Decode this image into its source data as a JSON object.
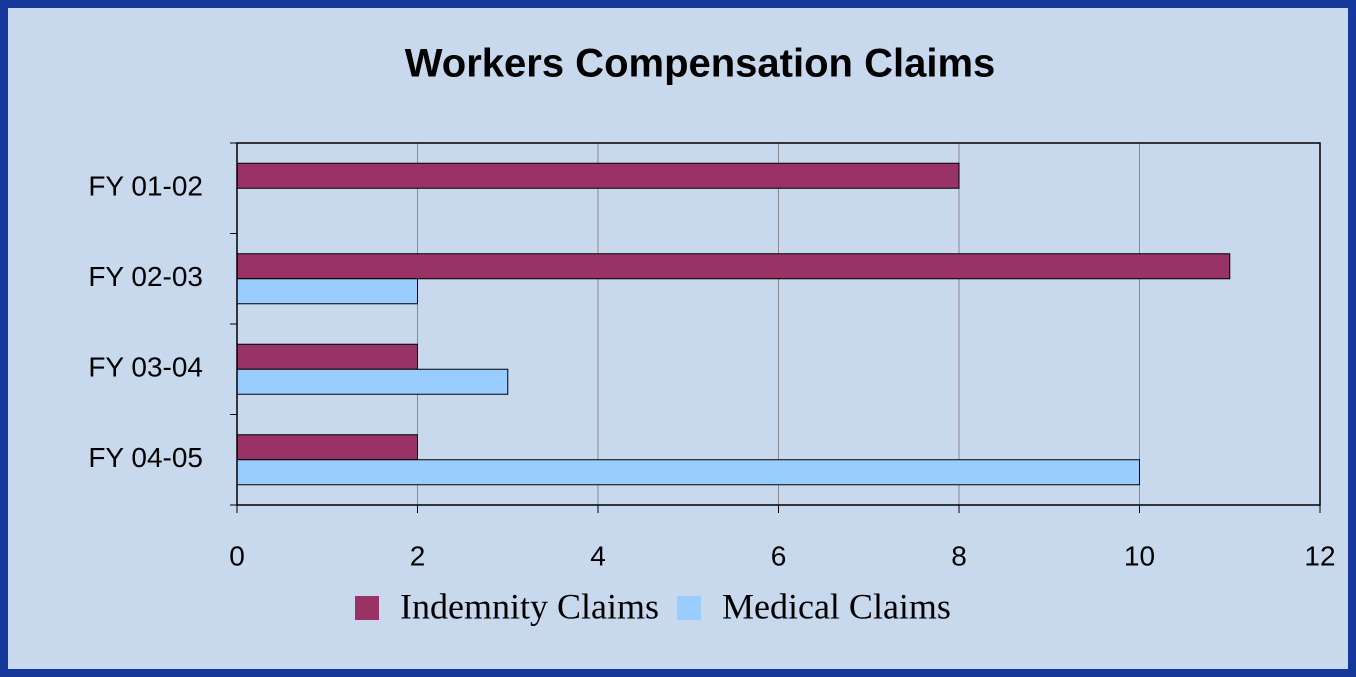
{
  "chart_data": {
    "type": "bar",
    "orientation": "horizontal",
    "title": "Workers Compensation Claims",
    "categories": [
      "FY 01-02",
      "FY 02-03",
      "FY 03-04",
      "FY 04-05"
    ],
    "series": [
      {
        "name": "Indemnity Claims",
        "color": "#993366",
        "values": [
          8,
          11,
          2,
          2
        ]
      },
      {
        "name": "Medical Claims",
        "color": "#99ccff",
        "values": [
          0,
          2,
          3,
          10
        ]
      }
    ],
    "xlim": [
      0,
      12
    ],
    "xticks": [
      0,
      2,
      4,
      6,
      8,
      10,
      12
    ],
    "grid": true,
    "legend": "bottom"
  }
}
